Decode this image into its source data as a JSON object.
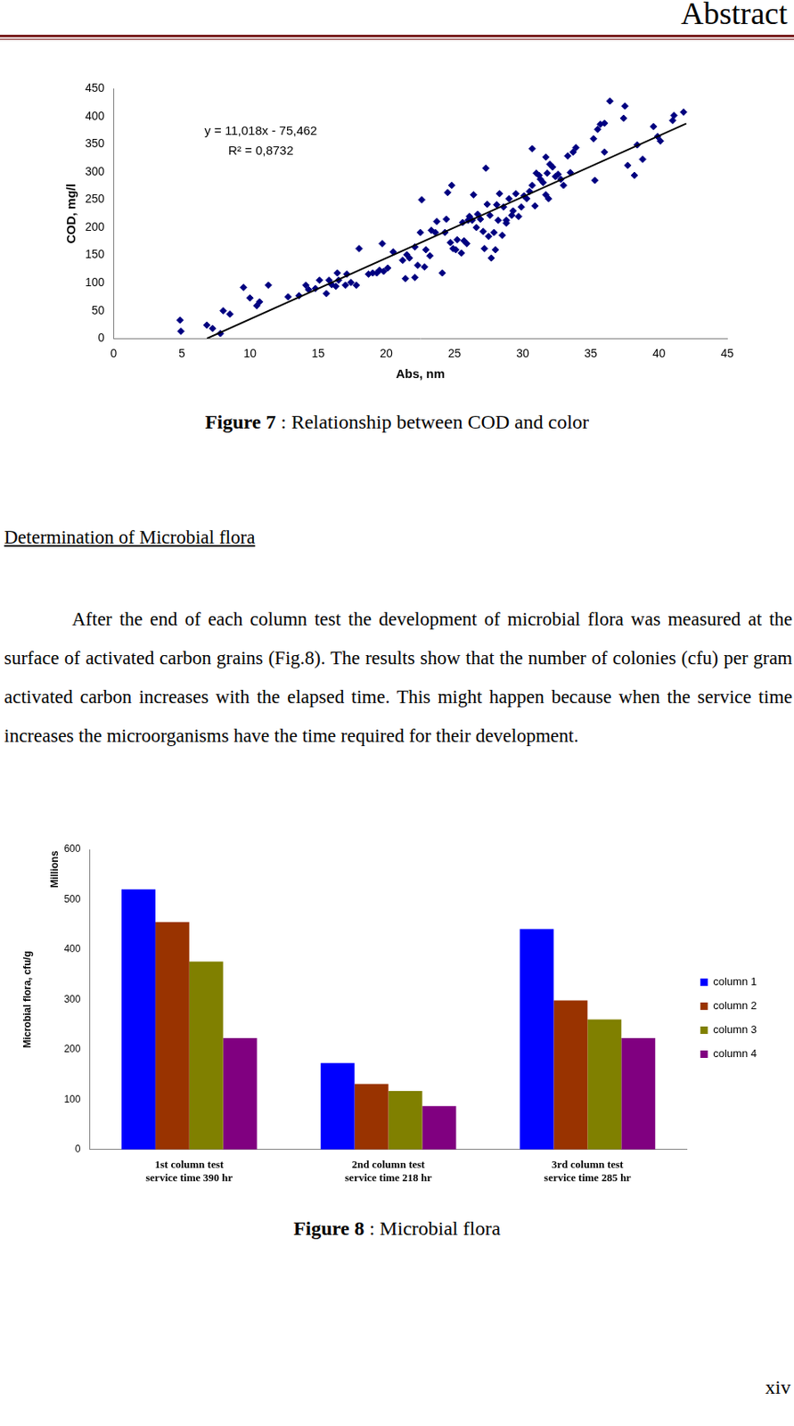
{
  "header": "Abstract",
  "chart_data": [
    {
      "type": "scatter",
      "x_label": "Abs, nm",
      "y_label": "COD, mg/l",
      "xlim": [
        0,
        45
      ],
      "xticks": [
        0,
        5,
        10,
        15,
        20,
        25,
        30,
        35,
        40,
        45
      ],
      "ylim": [
        0,
        450
      ],
      "yticks": [
        0,
        50,
        100,
        150,
        200,
        250,
        300,
        350,
        400,
        450
      ],
      "grid": false,
      "annotations": [
        "y = 11,018x - 75,462",
        "R² = 0,8732"
      ],
      "series": [
        {
          "type": "scatter",
          "marker": "diamond",
          "color": "#000080",
          "x": [
            4.87,
            4.94,
            6.84,
            7.26,
            7.83,
            8.04,
            8.53,
            9.52,
            10.0,
            10.5,
            10.7,
            11.35,
            12.8,
            13.6,
            14.1,
            14.3,
            14.8,
            15.1,
            15.6,
            15.8,
            16.0,
            16.3,
            16.4,
            16.5,
            17.0,
            17.1,
            17.4,
            17.8,
            18.0,
            18.7,
            19.0,
            19.3,
            19.5,
            19.7,
            19.8,
            20.1,
            20.5,
            21.2,
            21.4,
            21.5,
            21.7,
            22.1,
            22.1,
            22.3,
            22.5,
            22.6,
            22.8,
            22.9,
            23.2,
            23.3,
            23.6,
            23.7,
            24.1,
            24.3,
            24.4,
            24.5,
            24.7,
            24.8,
            24.9,
            25.1,
            25.2,
            25.5,
            25.6,
            25.7,
            25.9,
            26.0,
            26.1,
            26.3,
            26.4,
            26.6,
            26.7,
            26.9,
            27.1,
            27.2,
            27.3,
            27.4,
            27.5,
            27.6,
            27.7,
            27.9,
            28.0,
            28.1,
            28.2,
            28.3,
            28.5,
            28.6,
            28.8,
            28.8,
            29.0,
            29.2,
            29.3,
            29.5,
            29.7,
            29.9,
            30.1,
            30.3,
            30.5,
            30.7,
            30.7,
            30.9,
            31.0,
            31.2,
            31.3,
            31.5,
            31.7,
            31.7,
            31.8,
            31.9,
            32.0,
            32.2,
            32.4,
            32.6,
            32.8,
            33.0,
            33.3,
            33.5,
            33.7,
            33.9,
            35.2,
            35.3,
            35.5,
            35.7,
            36.0,
            36.0,
            36.4,
            37.4,
            37.5,
            37.7,
            38.2,
            38.4,
            38.8,
            39.6,
            39.9,
            40.1,
            41.0,
            41.1,
            41.8
          ],
          "values": [
            33,
            13,
            24,
            18,
            9,
            50,
            44,
            92,
            73,
            59,
            66,
            96,
            75,
            77,
            96,
            88,
            90,
            105,
            81,
            105,
            97,
            94,
            118,
            105,
            96,
            116,
            101,
            96,
            162,
            116,
            118,
            118,
            123,
            171,
            121,
            127,
            156,
            141,
            108,
            151,
            145,
            165,
            110,
            132,
            191,
            250,
            129,
            160,
            149,
            195,
            191,
            211,
            118,
            191,
            215,
            263,
            173,
            276,
            162,
            160,
            178,
            154,
            209,
            176,
            171,
            213,
            220,
            213,
            259,
            200,
            224,
            215,
            193,
            162,
            307,
            242,
            184,
            222,
            145,
            191,
            160,
            241,
            213,
            261,
            186,
            237,
            213,
            208,
            252,
            222,
            230,
            261,
            220,
            237,
            257,
            252,
            265,
            276,
            342,
            239,
            298,
            294,
            287,
            281,
            259,
            327,
            298,
            252,
            314,
            309,
            292,
            296,
            287,
            276,
            329,
            299,
            336,
            344,
            360,
            285,
            377,
            386,
            388,
            336,
            428,
            397,
            419,
            312,
            294,
            349,
            323,
            382,
            364,
            356,
            393,
            402,
            408
          ]
        },
        {
          "type": "line",
          "line_style": "solid",
          "color": "#000000",
          "x": [
            6.85,
            42
          ],
          "values": [
            0,
            387.3
          ]
        }
      ]
    },
    {
      "type": "bar",
      "y_label": "Microbial flora, cfu/g",
      "annotations": [
        "Millions"
      ],
      "categories": [
        [
          "1st column test",
          "service time 390 hr"
        ],
        [
          "2nd column test",
          "service time 218 hr"
        ],
        [
          "3rd column test",
          "service time 285 hr"
        ]
      ],
      "ylim": [
        0,
        600
      ],
      "yticks": [
        0,
        100,
        200,
        300,
        400,
        500,
        600
      ],
      "grid": false,
      "legend": "right",
      "series": [
        {
          "name": "column 1",
          "color": "#0000ff",
          "values": [
            520,
            173,
            441
          ]
        },
        {
          "name": "column 2",
          "color": "#993300",
          "values": [
            455,
            131,
            298
          ]
        },
        {
          "name": "column 3",
          "color": "#808000",
          "values": [
            376,
            117,
            260
          ]
        },
        {
          "name": "column 4",
          "color": "#800080",
          "values": [
            223,
            87,
            223
          ]
        }
      ]
    }
  ],
  "captions": [
    {
      "label": "Figure 7",
      "text": ": Relationship between COD and color"
    },
    {
      "label": "Figure 8",
      "text": ": Microbial flora"
    }
  ],
  "section": {
    "heading": "Determination of Microbial flora",
    "paragraph": "After the end of each column test the development of microbial flora was measured at the surface of activated carbon grains (Fig.8). The results show that the number of colonies (cfu) per gram activated carbon increases with the elapsed time. This might happen because when the service time increases the microorganisms have the time required for their development."
  },
  "page_number": "xiv"
}
